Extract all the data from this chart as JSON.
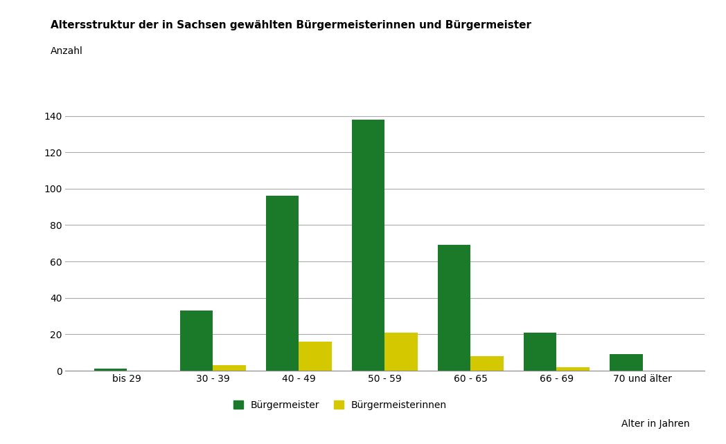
{
  "title": "Altersstruktur der in Sachsen gewählten Bürgermeisterinnen und Bürgermeister",
  "ylabel": "Anzahl",
  "xlabel_note": "Alter in Jahren",
  "categories": [
    "bis 29",
    "30 - 39",
    "40 - 49",
    "50 - 59",
    "60 - 65",
    "66 - 69",
    "70 und älter"
  ],
  "buergermeister": [
    1,
    33,
    96,
    138,
    69,
    21,
    9
  ],
  "buergermeisterinnen": [
    0,
    3,
    16,
    21,
    8,
    2,
    0
  ],
  "color_bm": "#1a7a2a",
  "color_bmin": "#d4c800",
  "ylim": [
    0,
    150
  ],
  "yticks": [
    0,
    20,
    40,
    60,
    80,
    100,
    120,
    140
  ],
  "bar_width": 0.38,
  "title_fontsize": 11,
  "axis_fontsize": 10,
  "tick_fontsize": 10,
  "legend_label_bm": "Bürgermeister",
  "legend_label_bmin": "Bürgermeisterinnen",
  "background_color": "#ffffff",
  "grid_color": "#aaaaaa"
}
